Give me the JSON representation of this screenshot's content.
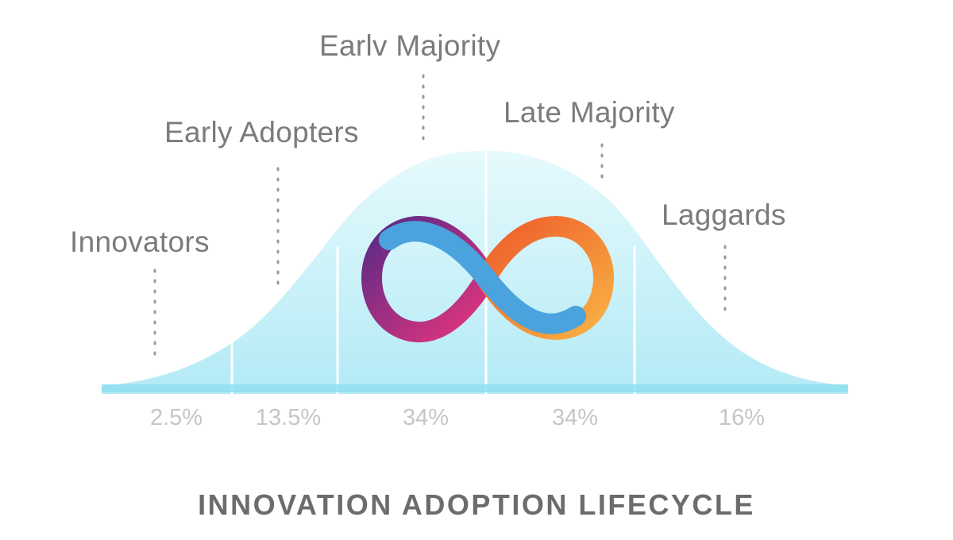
{
  "diagram": {
    "title": "INNOVATION ADOPTION LIFECYCLE",
    "segments": [
      {
        "label": "Innovators",
        "percent": "2.5%"
      },
      {
        "label": "Early Adopters",
        "percent": "13.5%"
      },
      {
        "label": "Earlv Majority",
        "percent": "34%"
      },
      {
        "label": "Late Majority",
        "percent": "34%"
      },
      {
        "label": "Laggards",
        "percent": "16%"
      }
    ],
    "logo": {
      "name": "infinity-logo",
      "colors": [
        "#522785",
        "#ED1E79",
        "#29ABE2",
        "#F15A24",
        "#FBB03B"
      ]
    },
    "colors": {
      "curve_top": "#dff7fb",
      "curve_bottom": "#b6ebf7",
      "baseline": "#8fdff0",
      "label": "#7b7b7b",
      "percent": "#c6c6c6"
    }
  }
}
